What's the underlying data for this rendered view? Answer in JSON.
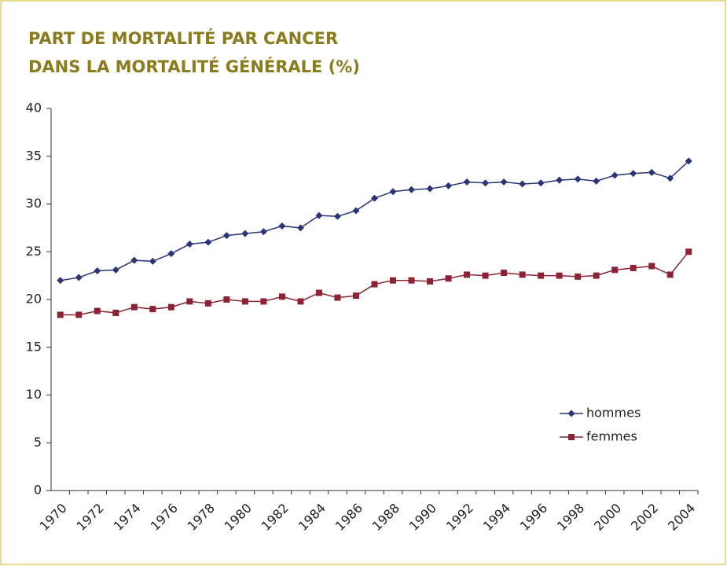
{
  "chart_data": {
    "type": "line",
    "title": [
      "PART DE MORTALITÉ PAR CANCER",
      "DANS LA MORTALITÉ GÉNÉRALE (%)"
    ],
    "categories": [
      "1970",
      null,
      "1972",
      null,
      "1974",
      null,
      "1976",
      null,
      "1978",
      null,
      "1980",
      null,
      "1982",
      null,
      "1984",
      null,
      "1986",
      null,
      "1988",
      null,
      "1990",
      null,
      "1992",
      null,
      "1994",
      null,
      "1996",
      null,
      "1998",
      null,
      "2000",
      null,
      "2002",
      null,
      "2004"
    ],
    "series": [
      {
        "name": "hommes",
        "color": "#2a3576",
        "marker": "diamond",
        "values": [
          22.0,
          22.3,
          23.0,
          23.1,
          24.1,
          24.0,
          24.8,
          25.8,
          26.0,
          26.7,
          26.9,
          27.1,
          27.7,
          27.5,
          28.8,
          28.7,
          29.3,
          30.6,
          31.3,
          31.5,
          31.6,
          31.9,
          32.3,
          32.2,
          32.3,
          32.1,
          32.2,
          32.5,
          32.6,
          32.4,
          33.0,
          33.2,
          33.3,
          32.7,
          34.5
        ]
      },
      {
        "name": "femmes",
        "color": "#8c2233",
        "marker": "square",
        "values": [
          18.4,
          18.4,
          18.8,
          18.6,
          19.2,
          19.0,
          19.2,
          19.8,
          19.6,
          20.0,
          19.8,
          19.8,
          20.3,
          19.8,
          20.7,
          20.2,
          20.4,
          21.6,
          22.0,
          22.0,
          21.9,
          22.2,
          22.6,
          22.5,
          22.8,
          22.6,
          22.5,
          22.5,
          22.4,
          22.5,
          23.1,
          23.3,
          23.5,
          22.6,
          25.0
        ]
      }
    ],
    "ylim": [
      0,
      40
    ],
    "yticks": [
      0,
      5,
      10,
      15,
      20,
      25,
      30,
      35,
      40
    ],
    "grid": false,
    "legend": "lower right"
  }
}
